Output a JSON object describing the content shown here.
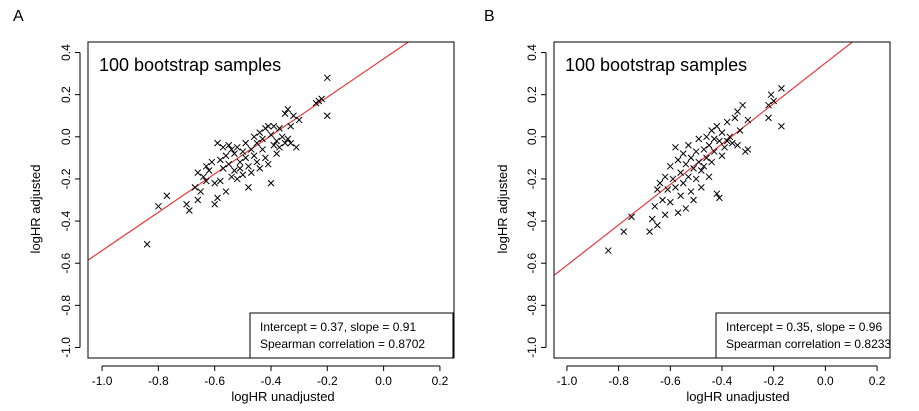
{
  "chart_data": [
    {
      "type": "scatter",
      "panel_label": "A",
      "annotation": "100 bootstrap samples",
      "xlabel": "logHR unadjusted",
      "ylabel": "logHR adjusted",
      "xlim": [
        -1.05,
        0.25
      ],
      "ylim": [
        -1.05,
        0.45
      ],
      "xticks": [
        -1.0,
        -0.8,
        -0.6,
        -0.4,
        -0.2,
        0.0,
        0.2
      ],
      "xtick_labels": [
        "-1.0",
        "-0.8",
        "-0.6",
        "-0.4",
        "-0.2",
        "0.0",
        "0.2"
      ],
      "yticks": [
        -1.0,
        -0.8,
        -0.6,
        -0.4,
        -0.2,
        0.0,
        0.2,
        0.4
      ],
      "ytick_labels": [
        "-1.0",
        "-0.8",
        "-0.6",
        "-0.4",
        "-0.2",
        "0.0",
        "0.2",
        "0.4"
      ],
      "fit": {
        "intercept": 0.37,
        "slope": 0.91,
        "color": "#e8383d"
      },
      "stats_lines": [
        "Intercept = 0.37, slope = 0.91",
        "Spearman correlation = 0.8702"
      ],
      "stats_box_position": "bottom-right",
      "points": [
        [
          -0.84,
          -0.51
        ],
        [
          -0.8,
          -0.33
        ],
        [
          -0.77,
          -0.28
        ],
        [
          -0.7,
          -0.32
        ],
        [
          -0.69,
          -0.35
        ],
        [
          -0.67,
          -0.24
        ],
        [
          -0.66,
          -0.3
        ],
        [
          -0.66,
          -0.17
        ],
        [
          -0.65,
          -0.26
        ],
        [
          -0.64,
          -0.19
        ],
        [
          -0.63,
          -0.14
        ],
        [
          -0.63,
          -0.21
        ],
        [
          -0.62,
          -0.16
        ],
        [
          -0.61,
          -0.12
        ],
        [
          -0.6,
          -0.22
        ],
        [
          -0.6,
          -0.32
        ],
        [
          -0.59,
          -0.03
        ],
        [
          -0.59,
          -0.29
        ],
        [
          -0.58,
          -0.21
        ],
        [
          -0.58,
          -0.11
        ],
        [
          -0.57,
          -0.05
        ],
        [
          -0.57,
          -0.15
        ],
        [
          -0.56,
          -0.09
        ],
        [
          -0.56,
          -0.26
        ],
        [
          -0.55,
          -0.04
        ],
        [
          -0.55,
          -0.13
        ],
        [
          -0.54,
          -0.06
        ],
        [
          -0.54,
          -0.19
        ],
        [
          -0.53,
          -0.16
        ],
        [
          -0.53,
          -0.08
        ],
        [
          -0.52,
          -0.2
        ],
        [
          -0.52,
          -0.05
        ],
        [
          -0.51,
          -0.12
        ],
        [
          -0.51,
          -0.15
        ],
        [
          -0.5,
          -0.07
        ],
        [
          -0.5,
          -0.18
        ],
        [
          -0.49,
          -0.1
        ],
        [
          -0.49,
          -0.03
        ],
        [
          -0.48,
          -0.14
        ],
        [
          -0.48,
          -0.24
        ],
        [
          -0.47,
          -0.06
        ],
        [
          -0.47,
          -0.17
        ],
        [
          -0.46,
          0.0
        ],
        [
          -0.46,
          -0.09
        ],
        [
          -0.45,
          -0.12
        ],
        [
          -0.45,
          -0.03
        ],
        [
          -0.44,
          0.02
        ],
        [
          -0.44,
          -0.15
        ],
        [
          -0.43,
          -0.06
        ],
        [
          -0.43,
          -0.01
        ],
        [
          -0.42,
          0.04
        ],
        [
          -0.42,
          -0.1
        ],
        [
          -0.41,
          0.05
        ],
        [
          -0.41,
          -0.13
        ],
        [
          -0.4,
          0.01
        ],
        [
          -0.4,
          -0.22
        ],
        [
          -0.39,
          -0.04
        ],
        [
          -0.39,
          0.05
        ],
        [
          -0.38,
          -0.02
        ],
        [
          -0.38,
          -0.08
        ],
        [
          -0.37,
          0.04
        ],
        [
          -0.37,
          -0.05
        ],
        [
          -0.36,
          0.0
        ],
        [
          -0.35,
          0.11
        ],
        [
          -0.35,
          -0.03
        ],
        [
          -0.34,
          -0.01
        ],
        [
          -0.34,
          0.13
        ],
        [
          -0.33,
          0.05
        ],
        [
          -0.33,
          -0.03
        ],
        [
          -0.32,
          0.1
        ],
        [
          -0.31,
          -0.05
        ],
        [
          -0.3,
          0.08
        ],
        [
          -0.24,
          0.16
        ],
        [
          -0.23,
          0.17
        ],
        [
          -0.22,
          0.18
        ],
        [
          -0.2,
          0.28
        ],
        [
          -0.2,
          0.1
        ]
      ]
    },
    {
      "type": "scatter",
      "panel_label": "B",
      "annotation": "100 bootstrap samples",
      "xlabel": "logHR unadjusted",
      "ylabel": "logHR adjusted",
      "xlim": [
        -1.05,
        0.25
      ],
      "ylim": [
        -1.05,
        0.45
      ],
      "xticks": [
        -1.0,
        -0.8,
        -0.6,
        -0.4,
        -0.2,
        0.0,
        0.2
      ],
      "xtick_labels": [
        "-1.0",
        "-0.8",
        "-0.6",
        "-0.4",
        "-0.2",
        "0.0",
        "0.2"
      ],
      "yticks": [
        -1.0,
        -0.8,
        -0.6,
        -0.4,
        -0.2,
        0.0,
        0.2,
        0.4
      ],
      "ytick_labels": [
        "-1.0",
        "-0.8",
        "-0.6",
        "-0.4",
        "-0.2",
        "0.0",
        "0.2",
        "0.4"
      ],
      "fit": {
        "intercept": 0.35,
        "slope": 0.96,
        "color": "#e8383d"
      },
      "stats_lines": [
        "Intercept = 0.35, slope = 0.96",
        "Spearman correlation = 0.8233"
      ],
      "stats_box_position": "bottom-right",
      "points": [
        [
          -0.84,
          -0.54
        ],
        [
          -0.78,
          -0.45
        ],
        [
          -0.75,
          -0.38
        ],
        [
          -0.68,
          -0.45
        ],
        [
          -0.67,
          -0.39
        ],
        [
          -0.66,
          -0.33
        ],
        [
          -0.65,
          -0.25
        ],
        [
          -0.65,
          -0.42
        ],
        [
          -0.64,
          -0.22
        ],
        [
          -0.63,
          -0.3
        ],
        [
          -0.62,
          -0.19
        ],
        [
          -0.62,
          -0.37
        ],
        [
          -0.61,
          -0.25
        ],
        [
          -0.6,
          -0.14
        ],
        [
          -0.6,
          -0.31
        ],
        [
          -0.59,
          -0.2
        ],
        [
          -0.58,
          -0.05
        ],
        [
          -0.58,
          -0.24
        ],
        [
          -0.57,
          -0.36
        ],
        [
          -0.57,
          -0.11
        ],
        [
          -0.56,
          -0.17
        ],
        [
          -0.56,
          -0.28
        ],
        [
          -0.55,
          -0.08
        ],
        [
          -0.55,
          -0.22
        ],
        [
          -0.54,
          -0.34
        ],
        [
          -0.54,
          -0.13
        ],
        [
          -0.53,
          -0.04
        ],
        [
          -0.53,
          -0.19
        ],
        [
          -0.52,
          -0.1
        ],
        [
          -0.52,
          -0.26
        ],
        [
          -0.51,
          -0.15
        ],
        [
          -0.51,
          -0.3
        ],
        [
          -0.5,
          -0.07
        ],
        [
          -0.5,
          -0.2
        ],
        [
          -0.49,
          -0.12
        ],
        [
          -0.49,
          -0.01
        ],
        [
          -0.48,
          -0.16
        ],
        [
          -0.48,
          -0.24
        ],
        [
          -0.47,
          -0.06
        ],
        [
          -0.47,
          -0.14
        ],
        [
          -0.46,
          0.0
        ],
        [
          -0.46,
          -0.1
        ],
        [
          -0.45,
          -0.19
        ],
        [
          -0.45,
          -0.04
        ],
        [
          -0.44,
          0.03
        ],
        [
          -0.44,
          -0.12
        ],
        [
          -0.43,
          -0.07
        ],
        [
          -0.43,
          -0.01
        ],
        [
          -0.42,
          -0.27
        ],
        [
          -0.42,
          0.05
        ],
        [
          -0.41,
          -0.29
        ],
        [
          -0.41,
          -0.02
        ],
        [
          -0.4,
          0.02
        ],
        [
          -0.4,
          -0.09
        ],
        [
          -0.39,
          -0.05
        ],
        [
          -0.38,
          0.07
        ],
        [
          -0.38,
          -0.02
        ],
        [
          -0.37,
          0.0
        ],
        [
          -0.36,
          -0.03
        ],
        [
          -0.35,
          0.09
        ],
        [
          -0.34,
          -0.04
        ],
        [
          -0.34,
          0.12
        ],
        [
          -0.33,
          0.03
        ],
        [
          -0.32,
          0.15
        ],
        [
          -0.31,
          -0.07
        ],
        [
          -0.3,
          0.08
        ],
        [
          -0.3,
          -0.06
        ],
        [
          -0.22,
          0.09
        ],
        [
          -0.22,
          0.15
        ],
        [
          -0.21,
          0.2
        ],
        [
          -0.2,
          0.17
        ],
        [
          -0.17,
          0.23
        ],
        [
          -0.17,
          0.05
        ]
      ]
    }
  ]
}
